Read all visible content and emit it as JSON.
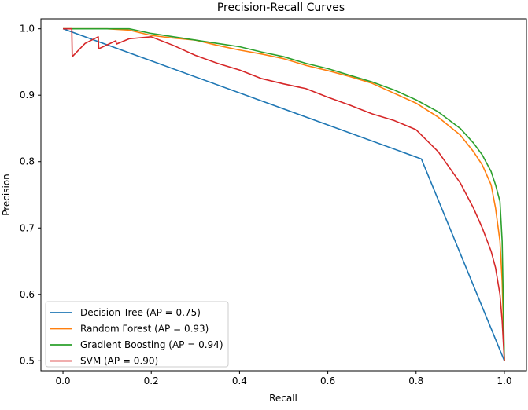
{
  "chart_data": {
    "type": "line",
    "title": "Precision-Recall Curves",
    "xlabel": "Recall",
    "ylabel": "Precision",
    "xlim": [
      -0.05,
      1.05
    ],
    "ylim": [
      0.485,
      1.015
    ],
    "xticks": [
      0.0,
      0.2,
      0.4,
      0.6,
      0.8,
      1.0
    ],
    "xtick_labels": [
      "0.0",
      "0.2",
      "0.4",
      "0.6",
      "0.8",
      "1.0"
    ],
    "yticks": [
      0.5,
      0.6,
      0.7,
      0.8,
      0.9,
      1.0
    ],
    "ytick_labels": [
      "0.5",
      "0.6",
      "0.7",
      "0.8",
      "0.9",
      "1.0"
    ],
    "grid": false,
    "legend_location": "lower-left",
    "series": [
      {
        "name": "Decision Tree",
        "label": "Decision Tree (AP = 0.75)",
        "color": "#1f77b4",
        "x": [
          0.0,
          0.812,
          1.0
        ],
        "y": [
          1.0,
          0.804,
          0.5
        ]
      },
      {
        "name": "Random Forest",
        "label": "Random Forest (AP = 0.93)",
        "color": "#ff7f0e",
        "x": [
          0.0,
          0.05,
          0.1,
          0.15,
          0.2,
          0.25,
          0.3,
          0.35,
          0.4,
          0.45,
          0.5,
          0.55,
          0.6,
          0.65,
          0.7,
          0.75,
          0.8,
          0.85,
          0.9,
          0.93,
          0.95,
          0.97,
          0.98,
          0.99,
          0.995,
          1.0
        ],
        "y": [
          1.0,
          1.0,
          1.0,
          0.998,
          0.99,
          0.986,
          0.983,
          0.975,
          0.968,
          0.962,
          0.955,
          0.945,
          0.937,
          0.928,
          0.918,
          0.903,
          0.888,
          0.867,
          0.84,
          0.815,
          0.795,
          0.765,
          0.73,
          0.68,
          0.62,
          0.5
        ]
      },
      {
        "name": "Gradient Boosting",
        "label": "Gradient Boosting (AP = 0.94)",
        "color": "#2ca02c",
        "x": [
          0.0,
          0.05,
          0.1,
          0.15,
          0.2,
          0.25,
          0.3,
          0.35,
          0.4,
          0.45,
          0.5,
          0.55,
          0.6,
          0.65,
          0.7,
          0.75,
          0.8,
          0.85,
          0.9,
          0.93,
          0.95,
          0.97,
          0.98,
          0.99,
          0.995,
          1.0
        ],
        "y": [
          1.0,
          1.0,
          1.0,
          1.0,
          0.993,
          0.988,
          0.983,
          0.978,
          0.973,
          0.965,
          0.958,
          0.948,
          0.94,
          0.93,
          0.92,
          0.908,
          0.893,
          0.875,
          0.85,
          0.828,
          0.81,
          0.785,
          0.765,
          0.74,
          0.68,
          0.5
        ]
      },
      {
        "name": "SVM",
        "label": "SVM (AP = 0.90)",
        "color": "#d62728",
        "x": [
          0.0,
          0.02,
          0.021,
          0.05,
          0.08,
          0.081,
          0.12,
          0.121,
          0.15,
          0.2,
          0.25,
          0.3,
          0.35,
          0.4,
          0.45,
          0.5,
          0.55,
          0.6,
          0.65,
          0.7,
          0.75,
          0.8,
          0.85,
          0.9,
          0.93,
          0.95,
          0.97,
          0.98,
          0.99,
          0.995,
          1.0
        ],
        "y": [
          1.0,
          1.0,
          0.958,
          0.978,
          0.988,
          0.97,
          0.982,
          0.977,
          0.985,
          0.988,
          0.975,
          0.96,
          0.948,
          0.938,
          0.925,
          0.917,
          0.91,
          0.897,
          0.885,
          0.872,
          0.862,
          0.848,
          0.815,
          0.768,
          0.73,
          0.7,
          0.665,
          0.64,
          0.6,
          0.56,
          0.5
        ]
      }
    ]
  }
}
